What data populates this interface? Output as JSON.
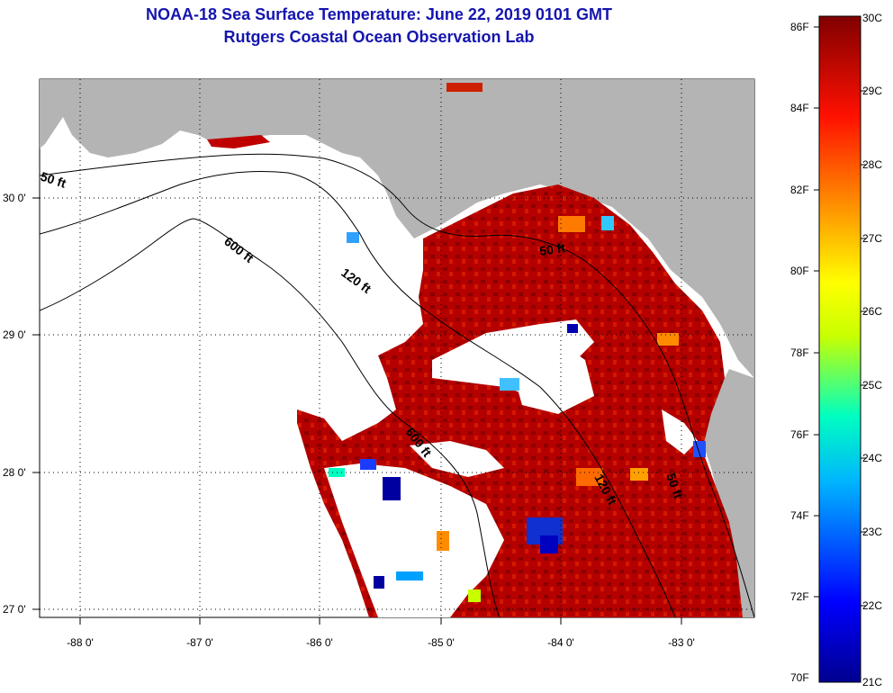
{
  "title": "NOAA-18 Sea Surface Temperature:  June 22, 2019 0101 GMT",
  "subtitle": "Rutgers Coastal Ocean Observation Lab",
  "axes": {
    "x_ticks": [
      "-88 0'",
      "-87 0'",
      "-86 0'",
      "-85 0'",
      "-84 0'",
      "-83 0'"
    ],
    "y_ticks": [
      "30 0'",
      "29 0'",
      "28 0'",
      "27 0'"
    ]
  },
  "contours": [
    "50 ft",
    "600 ft",
    "120 ft",
    "50 ft",
    "600 ft",
    "120 ft",
    "50 ft"
  ],
  "colorbar": {
    "f_labels": [
      "86F",
      "84F",
      "82F",
      "80F",
      "78F",
      "76F",
      "74F",
      "72F",
      "70F"
    ],
    "c_labels": [
      "30C",
      "29C",
      "28C",
      "27C",
      "26C",
      "25C",
      "24C",
      "23C",
      "22C",
      "21C"
    ]
  },
  "colors": {
    "land": "#b4b4b4",
    "ocean_warm": "#a80000",
    "title": "#1515b0"
  }
}
